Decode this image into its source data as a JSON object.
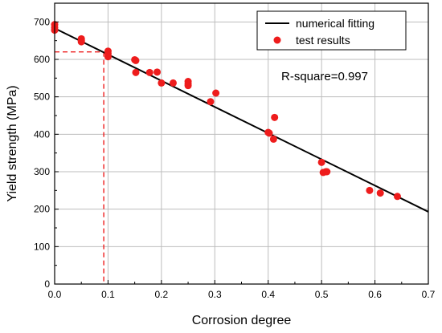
{
  "chart_data": {
    "type": "scatter",
    "xlabel": "Corrosion degree",
    "ylabel": "Yield strength (MPa)",
    "xlim": [
      0,
      0.7
    ],
    "ylim": [
      0,
      750
    ],
    "x_ticks": [
      0.0,
      0.1,
      0.2,
      0.3,
      0.4,
      0.5,
      0.6,
      0.7
    ],
    "x_tick_labels": [
      "0.0",
      "0.1",
      "0.2",
      "0.3",
      "0.4",
      "0.5",
      "0.6",
      "0.7"
    ],
    "y_ticks": [
      0,
      100,
      200,
      300,
      400,
      500,
      600,
      700
    ],
    "y_tick_labels": [
      "0",
      "100",
      "200",
      "300",
      "400",
      "500",
      "600",
      "700"
    ],
    "grid": true,
    "legend_position": "top-right",
    "series": [
      {
        "name": "numerical fitting",
        "kind": "line",
        "color": "#000000",
        "x": [
          0,
          0.7
        ],
        "y": [
          683,
          193
        ]
      },
      {
        "name": "test results",
        "kind": "scatter",
        "color": "#ee1c1c",
        "x": [
          0.0,
          0.0,
          0.0,
          0.05,
          0.05,
          0.05,
          0.1,
          0.1,
          0.1,
          0.15,
          0.152,
          0.152,
          0.178,
          0.192,
          0.2,
          0.222,
          0.25,
          0.25,
          0.25,
          0.292,
          0.302,
          0.4,
          0.402,
          0.41,
          0.412,
          0.5,
          0.503,
          0.508,
          0.51,
          0.59,
          0.61,
          0.642
        ],
        "y": [
          693,
          685,
          678,
          655,
          651,
          647,
          622,
          615,
          607,
          599,
          597,
          565,
          565,
          566,
          537,
          537,
          541,
          535,
          530,
          487,
          510,
          405,
          403,
          387,
          445,
          325,
          298,
          300,
          300,
          250,
          243,
          234
        ]
      }
    ],
    "annotations": [
      {
        "text": "R-square=0.997"
      }
    ],
    "reference_lines": {
      "x": 0.092,
      "y": 620,
      "color": "#ee1c1c",
      "style": "dashed"
    }
  }
}
